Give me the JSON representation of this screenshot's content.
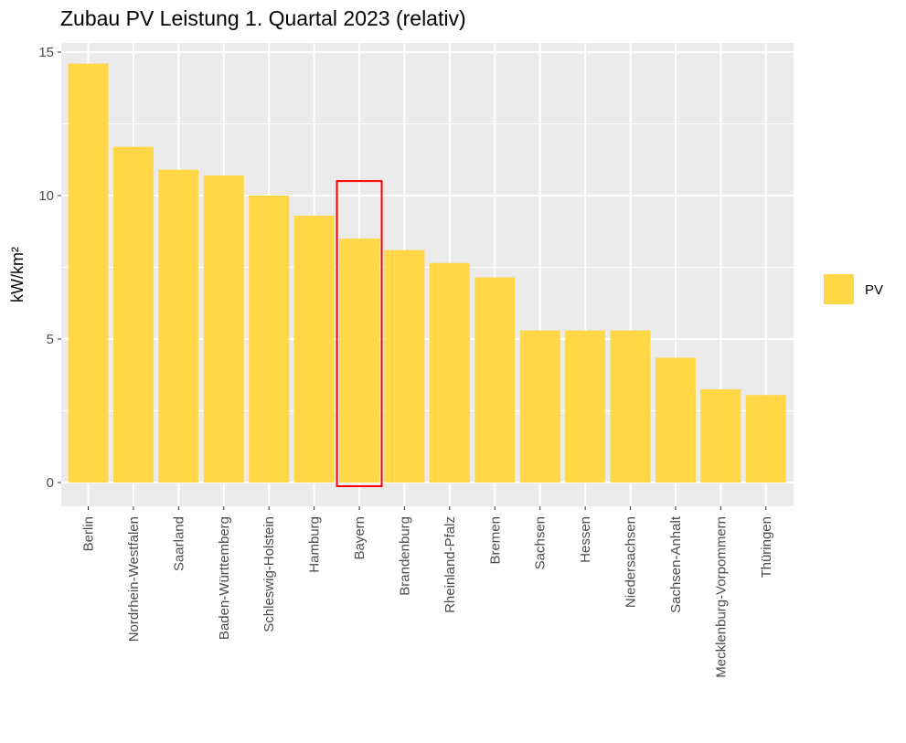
{
  "chart_data": {
    "type": "bar",
    "title": "Zubau PV Leistung 1. Quartal 2023 (relativ)",
    "xlabel": "",
    "ylabel": "kW/km²",
    "categories": [
      "Berlin",
      "Nordrhein-Westfalen",
      "Saarland",
      "Baden-Württemberg",
      "Schleswig-Holstein",
      "Hamburg",
      "Bayern",
      "Brandenburg",
      "Rheinland-Pfalz",
      "Bremen",
      "Sachsen",
      "Hessen",
      "Niedersachsen",
      "Sachsen-Anhalt",
      "Mecklenburg-Vorpommern",
      "Thüringen"
    ],
    "series": [
      {
        "name": "PV",
        "color": "#FFD747",
        "values": [
          14.6,
          11.7,
          10.9,
          10.7,
          10.0,
          9.3,
          8.5,
          8.1,
          7.65,
          7.15,
          5.3,
          5.3,
          5.3,
          4.35,
          3.25,
          3.05
        ]
      }
    ],
    "ylim": [
      0,
      15
    ],
    "yticks": [
      0,
      5,
      10,
      15
    ],
    "grid": true,
    "panel_background": "#EBEBEB",
    "grid_color": "#FFFFFF",
    "legend_position": "right",
    "highlight": {
      "category": "Bayern",
      "color": "#FF0000"
    }
  }
}
